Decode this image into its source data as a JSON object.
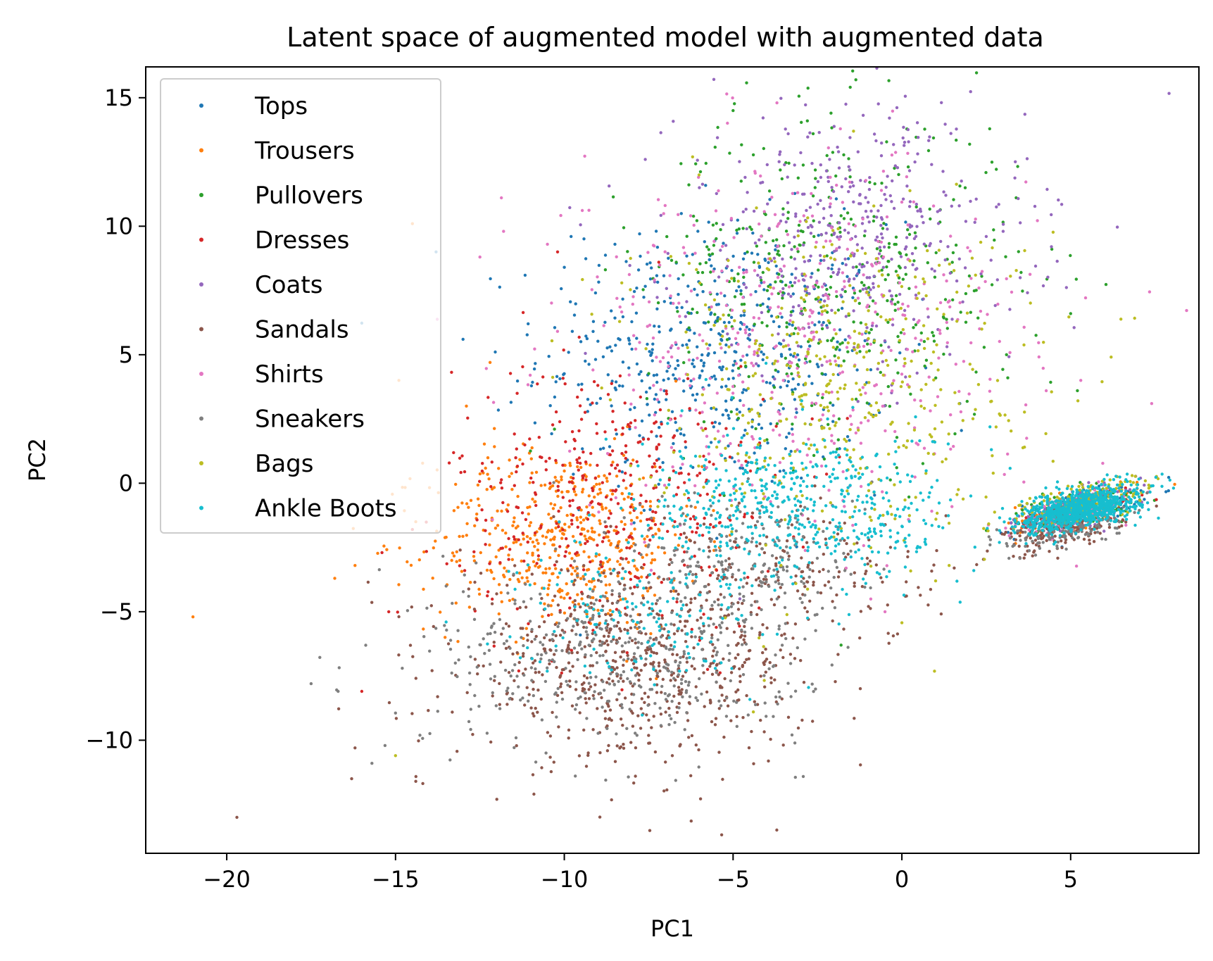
{
  "chart_data": {
    "type": "scatter",
    "title": "Latent space of augmented model with augmented data",
    "xlabel": "PC1",
    "ylabel": "PC2",
    "xlim": [
      -22.4,
      8.8
    ],
    "ylim": [
      -14.4,
      16.2
    ],
    "xticks": [
      -20,
      -15,
      -10,
      -5,
      0,
      5
    ],
    "yticks": [
      -10,
      -5,
      0,
      5,
      10,
      15
    ],
    "xtick_labels": [
      "−20",
      "−15",
      "−10",
      "−5",
      "0",
      "5"
    ],
    "ytick_labels": [
      "−10",
      "−5",
      "0",
      "5",
      "10",
      "15"
    ],
    "grid": false,
    "legend_position": "upper-left",
    "marker_size_note": "small dots",
    "series": [
      {
        "name": "Tops",
        "color": "#1f77b4",
        "clusters": [
          {
            "cx": -5.5,
            "cy": 5.0,
            "sx": 2.6,
            "sy": 2.6,
            "n": 520
          },
          {
            "cx": 5.2,
            "cy": -1.0,
            "sx": 0.9,
            "sy": 0.35,
            "n": 120
          }
        ],
        "points": [
          [
            -13.8,
            9.0
          ],
          [
            -13.0,
            5.6
          ],
          [
            -9.8,
            9.6
          ],
          [
            -10.0,
            8.4
          ],
          [
            -8.5,
            9.3
          ],
          [
            -7.8,
            8.3
          ],
          [
            -6.2,
            8.9
          ]
        ]
      },
      {
        "name": "Trousers",
        "color": "#ff7f0e",
        "clusters": [
          {
            "cx": -10.0,
            "cy": -2.2,
            "sx": 2.0,
            "sy": 1.8,
            "n": 520
          },
          {
            "cx": 5.2,
            "cy": -1.0,
            "sx": 0.9,
            "sy": 0.35,
            "n": 100
          }
        ],
        "points": [
          [
            -21.0,
            -5.2
          ],
          [
            -16.8,
            -3.7
          ],
          [
            -16.2,
            -3.2
          ],
          [
            -14.5,
            10.1
          ],
          [
            -14.9,
            4.0
          ],
          [
            -14.4,
            -1.5
          ],
          [
            -12.9,
            3.0
          ],
          [
            -12.2,
            4.7
          ]
        ]
      },
      {
        "name": "Pullovers",
        "color": "#2ca02c",
        "clusters": [
          {
            "cx": -2.0,
            "cy": 8.0,
            "sx": 2.8,
            "sy": 3.2,
            "n": 430
          },
          {
            "cx": 5.2,
            "cy": -1.0,
            "sx": 0.9,
            "sy": 0.35,
            "n": 120
          }
        ],
        "points": [
          [
            -5.0,
            14.5
          ],
          [
            -2.1,
            14.4
          ],
          [
            -2.8,
            14.1
          ],
          [
            5.0,
            6.6
          ],
          [
            5.2,
            3.6
          ],
          [
            5.0,
            -0.7
          ],
          [
            3.1,
            5.0
          ],
          [
            -1.8,
            -6.3
          ]
        ]
      },
      {
        "name": "Dresses",
        "color": "#d62728",
        "clusters": [
          {
            "cx": -8.5,
            "cy": -0.5,
            "sx": 2.4,
            "sy": 2.6,
            "n": 400
          },
          {
            "cx": 5.2,
            "cy": -1.0,
            "sx": 0.9,
            "sy": 0.35,
            "n": 80
          }
        ],
        "points": [
          [
            -16.0,
            -8.1
          ],
          [
            -15.2,
            -5.0
          ],
          [
            -14.5,
            -1.8
          ],
          [
            -15.4,
            -2.7
          ],
          [
            -10.2,
            9.0
          ],
          [
            -7.2,
            8.6
          ]
        ]
      },
      {
        "name": "Coats",
        "color": "#9467bd",
        "clusters": [
          {
            "cx": -1.5,
            "cy": 9.5,
            "sx": 2.6,
            "sy": 2.6,
            "n": 420
          },
          {
            "cx": 5.2,
            "cy": -1.0,
            "sx": 0.9,
            "sy": 0.35,
            "n": 130
          }
        ],
        "points": [
          [
            -7.6,
            12.6
          ],
          [
            -6.0,
            11.5
          ],
          [
            2.5,
            9.6
          ],
          [
            3.0,
            9.8
          ],
          [
            -4.8,
            -4.5
          ]
        ]
      },
      {
        "name": "Sandals",
        "color": "#8c564b",
        "clusters": [
          {
            "cx": -8.0,
            "cy": -7.0,
            "sx": 2.6,
            "sy": 1.9,
            "n": 650
          },
          {
            "cx": -2.5,
            "cy": -3.5,
            "sx": 1.8,
            "sy": 1.4,
            "n": 150
          },
          {
            "cx": 4.8,
            "cy": -1.8,
            "sx": 0.9,
            "sy": 0.4,
            "n": 170
          }
        ],
        "points": [
          [
            -19.7,
            -13.0
          ],
          [
            -16.3,
            -11.5
          ],
          [
            -14.4,
            -11.6
          ],
          [
            -12.0,
            -12.3
          ],
          [
            -10.9,
            -12.1
          ],
          [
            -16.2,
            -10.3
          ],
          [
            -6.8,
            -10.6
          ],
          [
            -3.0,
            -6.9
          ]
        ]
      },
      {
        "name": "Shirts",
        "color": "#e377c2",
        "clusters": [
          {
            "cx": -3.0,
            "cy": 5.5,
            "sx": 3.5,
            "sy": 3.5,
            "n": 480
          },
          {
            "cx": 5.2,
            "cy": -1.0,
            "sx": 0.9,
            "sy": 0.35,
            "n": 110
          }
        ],
        "points": [
          [
            -3.7,
            14.8
          ],
          [
            7.4,
            3.1
          ],
          [
            5.3,
            4.0
          ],
          [
            -11.8,
            9.8
          ],
          [
            -12.5,
            8.8
          ],
          [
            -10.5,
            9.3
          ],
          [
            -0.5,
            -5.0
          ]
        ]
      },
      {
        "name": "Sneakers",
        "color": "#7f7f7f",
        "clusters": [
          {
            "cx": -8.5,
            "cy": -6.8,
            "sx": 2.8,
            "sy": 1.7,
            "n": 430
          },
          {
            "cx": -4.5,
            "cy": -3.0,
            "sx": 1.8,
            "sy": 1.4,
            "n": 200
          },
          {
            "cx": 4.8,
            "cy": -1.8,
            "sx": 0.9,
            "sy": 0.4,
            "n": 140
          }
        ],
        "points": [
          [
            -17.5,
            -7.8
          ],
          [
            -16.7,
            -8.1
          ],
          [
            -15.7,
            -10.9
          ],
          [
            -13.5,
            -4.0
          ],
          [
            -14.8,
            -7.2
          ]
        ]
      },
      {
        "name": "Bags",
        "color": "#bcbd22",
        "clusters": [
          {
            "cx": -2.0,
            "cy": 4.0,
            "sx": 3.0,
            "sy": 3.3,
            "n": 460
          },
          {
            "cx": 5.5,
            "cy": -0.7,
            "sx": 1.0,
            "sy": 0.35,
            "n": 170
          }
        ],
        "points": [
          [
            -15.0,
            -10.6
          ],
          [
            -4.4,
            -8.9
          ],
          [
            1.0,
            -3.8
          ],
          [
            1.4,
            -3.2
          ],
          [
            -6.2,
            12.7
          ]
        ]
      },
      {
        "name": "Ankle Boots",
        "color": "#17becf",
        "clusters": [
          {
            "cx": -3.0,
            "cy": -1.0,
            "sx": 2.4,
            "sy": 1.5,
            "n": 520
          },
          {
            "cx": -7.5,
            "cy": -5.0,
            "sx": 1.8,
            "sy": 1.4,
            "n": 160
          },
          {
            "cx": 5.3,
            "cy": -1.0,
            "sx": 0.85,
            "sy": 0.35,
            "n": 900
          }
        ],
        "points": [
          [
            -13.5,
            -5.4
          ],
          [
            -2.2,
            2.5
          ]
        ]
      }
    ]
  }
}
